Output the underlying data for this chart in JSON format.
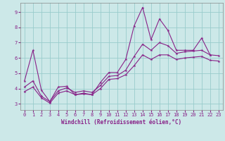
{
  "xlabel": "Windchill (Refroidissement éolien,°C)",
  "background_color": "#cce8e8",
  "grid_color": "#99cccc",
  "line_color": "#882288",
  "xlim": [
    -0.5,
    23.5
  ],
  "ylim": [
    2.6,
    9.6
  ],
  "xticks": [
    0,
    1,
    2,
    3,
    4,
    5,
    6,
    7,
    8,
    9,
    10,
    11,
    12,
    13,
    14,
    15,
    16,
    17,
    18,
    19,
    20,
    21,
    22,
    23
  ],
  "yticks": [
    3,
    4,
    5,
    6,
    7,
    8,
    9
  ],
  "tick_fontsize": 5.0,
  "xlabel_fontsize": 5.5,
  "line1_x": [
    0,
    1,
    2,
    3,
    4,
    5,
    6,
    7,
    8,
    9,
    10,
    11,
    12,
    13,
    14,
    15,
    16,
    17,
    18,
    19,
    20,
    21,
    22
  ],
  "line1_y": [
    4.5,
    6.5,
    3.9,
    3.15,
    4.1,
    4.15,
    3.6,
    3.65,
    3.6,
    4.4,
    5.05,
    5.05,
    5.9,
    8.1,
    9.3,
    7.2,
    8.55,
    7.8,
    6.5,
    6.5,
    6.5,
    7.3,
    6.2
  ],
  "line2_x": [
    0,
    1,
    2,
    3,
    4,
    5,
    6,
    7,
    8,
    9,
    10,
    11,
    12,
    13,
    14,
    15,
    16,
    17,
    18,
    19,
    20,
    21,
    22,
    23
  ],
  "line2_y": [
    4.1,
    4.5,
    3.5,
    3.15,
    3.85,
    4.05,
    3.75,
    3.85,
    3.75,
    4.2,
    4.8,
    4.85,
    5.2,
    6.1,
    6.9,
    6.5,
    7.0,
    6.8,
    6.3,
    6.4,
    6.45,
    6.5,
    6.2,
    6.15
  ],
  "line3_x": [
    0,
    1,
    2,
    3,
    4,
    5,
    6,
    7,
    8,
    9,
    10,
    11,
    12,
    13,
    14,
    15,
    16,
    17,
    18,
    19,
    20,
    21,
    22,
    23
  ],
  "line3_y": [
    3.8,
    4.1,
    3.4,
    3.05,
    3.7,
    3.85,
    3.6,
    3.7,
    3.6,
    4.0,
    4.6,
    4.65,
    4.9,
    5.5,
    6.2,
    5.9,
    6.2,
    6.2,
    5.9,
    6.0,
    6.05,
    6.1,
    5.85,
    5.8
  ]
}
